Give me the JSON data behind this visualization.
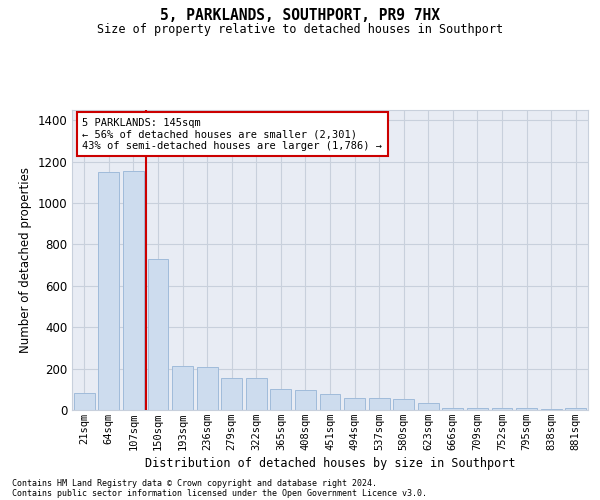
{
  "title": "5, PARKLANDS, SOUTHPORT, PR9 7HX",
  "subtitle": "Size of property relative to detached houses in Southport",
  "xlabel": "Distribution of detached houses by size in Southport",
  "ylabel": "Number of detached properties",
  "bar_labels": [
    "21sqm",
    "64sqm",
    "107sqm",
    "150sqm",
    "193sqm",
    "236sqm",
    "279sqm",
    "322sqm",
    "365sqm",
    "408sqm",
    "451sqm",
    "494sqm",
    "537sqm",
    "580sqm",
    "623sqm",
    "666sqm",
    "709sqm",
    "752sqm",
    "795sqm",
    "838sqm",
    "881sqm"
  ],
  "bar_values": [
    80,
    1150,
    1155,
    730,
    215,
    210,
    155,
    155,
    100,
    95,
    75,
    60,
    60,
    55,
    35,
    10,
    10,
    10,
    10,
    5,
    10
  ],
  "bar_color": "#cddcee",
  "bar_edge_color": "#a0bbda",
  "grid_color": "#c8d0dc",
  "bg_color": "#e8ecf4",
  "vline_color": "#cc0000",
  "vline_x": 2.5,
  "annotation_text": "5 PARKLANDS: 145sqm\n← 56% of detached houses are smaller (2,301)\n43% of semi-detached houses are larger (1,786) →",
  "annotation_box_color": "#ffffff",
  "annotation_box_edge": "#cc0000",
  "ylim": [
    0,
    1450
  ],
  "yticks": [
    0,
    200,
    400,
    600,
    800,
    1000,
    1200,
    1400
  ],
  "footer_line1": "Contains HM Land Registry data © Crown copyright and database right 2024.",
  "footer_line2": "Contains public sector information licensed under the Open Government Licence v3.0."
}
